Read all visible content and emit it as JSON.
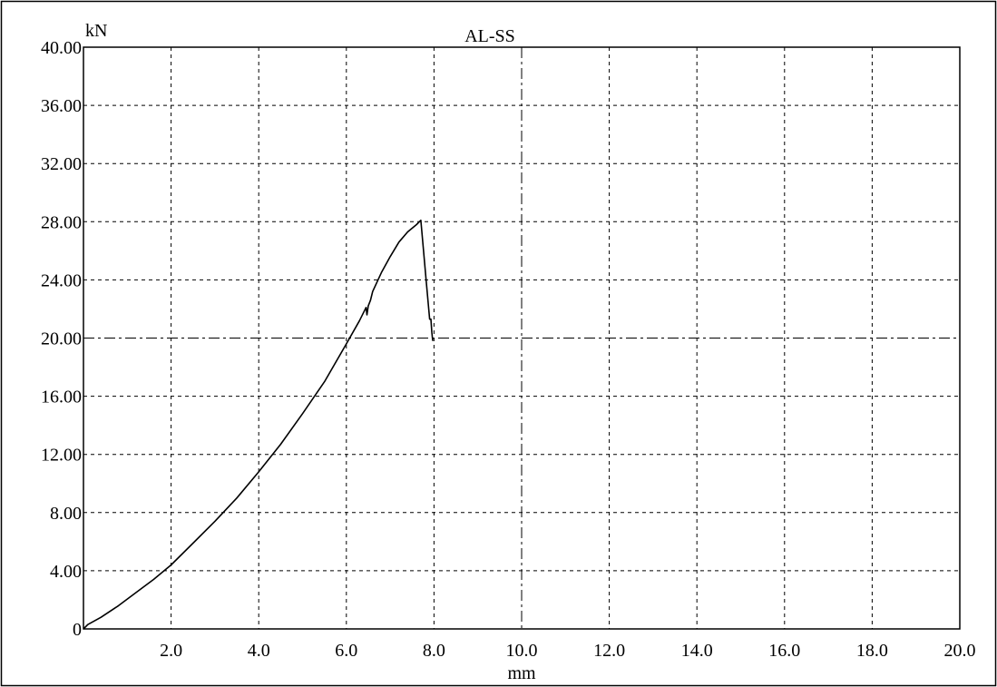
{
  "chart_data": {
    "type": "line",
    "title": "AL-SS",
    "xlabel": "mm",
    "ylabel": "kN",
    "xlim": [
      0,
      20
    ],
    "ylim": [
      0,
      40
    ],
    "grid": true,
    "x_ticks": [
      "2.0",
      "4.0",
      "6.0",
      "8.0",
      "10.0",
      "12.0",
      "14.0",
      "16.0",
      "18.0",
      "20.0"
    ],
    "y_ticks": [
      "0",
      "4.00",
      "8.00",
      "12.00",
      "16.00",
      "20.00",
      "24.00",
      "28.00",
      "32.00",
      "36.00",
      "40.00"
    ],
    "series": [
      {
        "color": "#000000",
        "points": [
          [
            0.0,
            0.0
          ],
          [
            0.1,
            0.3
          ],
          [
            0.4,
            0.8
          ],
          [
            0.8,
            1.6
          ],
          [
            1.2,
            2.5
          ],
          [
            1.6,
            3.4
          ],
          [
            2.0,
            4.4
          ],
          [
            2.5,
            5.9
          ],
          [
            3.0,
            7.4
          ],
          [
            3.5,
            9.0
          ],
          [
            4.0,
            10.8
          ],
          [
            4.5,
            12.7
          ],
          [
            5.0,
            14.8
          ],
          [
            5.5,
            17.0
          ],
          [
            6.0,
            19.6
          ],
          [
            6.3,
            21.2
          ],
          [
            6.45,
            22.1
          ],
          [
            6.47,
            21.6
          ],
          [
            6.5,
            22.2
          ],
          [
            6.55,
            22.6
          ],
          [
            6.6,
            23.2
          ],
          [
            6.8,
            24.5
          ],
          [
            7.0,
            25.6
          ],
          [
            7.2,
            26.6
          ],
          [
            7.4,
            27.3
          ],
          [
            7.6,
            27.8
          ],
          [
            7.7,
            28.1
          ],
          [
            7.82,
            24.0
          ],
          [
            7.9,
            21.3
          ],
          [
            7.93,
            21.3
          ],
          [
            7.95,
            20.4
          ],
          [
            7.97,
            19.8
          ]
        ]
      }
    ]
  }
}
